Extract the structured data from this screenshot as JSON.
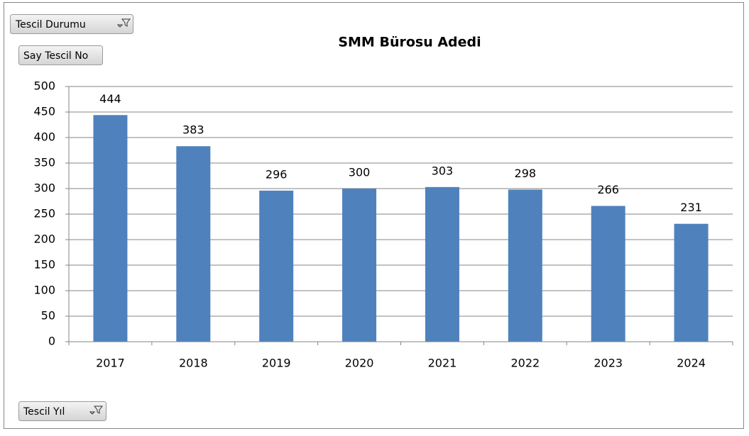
{
  "chart_data": {
    "type": "bar",
    "title": "SMM Bürosu Adedi",
    "categories": [
      "2017",
      "2018",
      "2019",
      "2020",
      "2021",
      "2022",
      "2023",
      "2024"
    ],
    "values": [
      444,
      383,
      296,
      300,
      303,
      298,
      266,
      231
    ],
    "color": "#4f81bd",
    "ylim": [
      0,
      500
    ],
    "yticks": [
      0,
      50,
      100,
      150,
      200,
      250,
      300,
      350,
      400,
      450,
      500
    ],
    "grid": true,
    "buttons": {
      "filter": "Tescil Durumu",
      "value": "Say Tescil No",
      "axis": "Tescil Yıl"
    }
  }
}
